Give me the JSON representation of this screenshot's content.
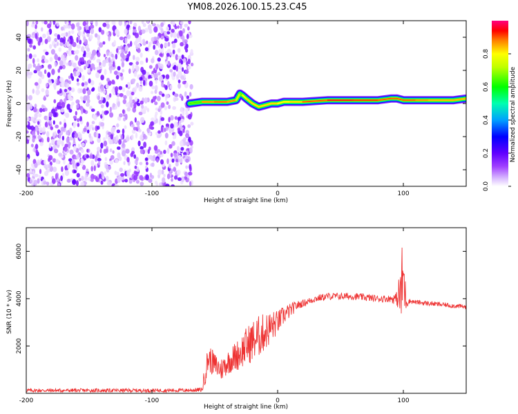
{
  "figure": {
    "title": "YM08.2026.100.15.23.C45"
  },
  "chart_data": [
    {
      "type": "heatmap",
      "panel": "top",
      "xlabel": "Height of straight line (km)",
      "ylabel": "Frequency (Hz)",
      "xlim": [
        -200,
        150
      ],
      "ylim": [
        -50,
        50
      ],
      "xticks": [
        -200,
        -100,
        0,
        100
      ],
      "yticks": [
        -40,
        -20,
        0,
        20,
        40
      ],
      "colorbar": {
        "label": "Normalized spectral amplitude",
        "range": [
          0,
          1
        ],
        "ticks": [
          0.0,
          0.2,
          0.4,
          0.6,
          0.8
        ],
        "tick_labels": [
          "0.0",
          "0.2",
          "0.4",
          "0.6",
          "0.8"
        ],
        "colormap": "rainbow (violet-blue-cyan-green-yellow-red-magenta)"
      },
      "noise_region": {
        "x": [
          -200,
          -68
        ],
        "y": [
          -50,
          50
        ],
        "amplitude": [
          0.02,
          0.2
        ]
      },
      "ridge": {
        "x": [
          -70,
          -60,
          -50,
          -40,
          -33,
          -30,
          -28,
          -25,
          -20,
          -15,
          -10,
          -5,
          0,
          5,
          10,
          20,
          40,
          60,
          80,
          90,
          95,
          100,
          110,
          120,
          140,
          150
        ],
        "y": [
          0,
          1,
          1,
          1,
          2,
          6,
          5,
          3,
          0,
          -2,
          -1,
          0,
          0,
          1,
          1,
          1,
          2,
          2,
          2,
          3,
          3,
          2,
          2,
          2,
          2,
          3
        ],
        "peak_amplitude": [
          0.4,
          0.85,
          0.9,
          0.9,
          0.85,
          0.6,
          0.7,
          0.85,
          0.8,
          0.85,
          0.8,
          0.85,
          0.8,
          0.8,
          0.8,
          0.85,
          0.95,
          0.95,
          0.9,
          0.9,
          0.9,
          0.9,
          0.9,
          0.85,
          0.85,
          0.85
        ]
      }
    },
    {
      "type": "line",
      "panel": "bottom",
      "xlabel": "Height of straight line (km)",
      "ylabel": "SNR (10 * v/v)",
      "xlim": [
        -200,
        150
      ],
      "ylim": [
        0,
        7000
      ],
      "xticks": [
        -200,
        -100,
        0,
        100
      ],
      "yticks": [
        2000,
        4000,
        6000
      ],
      "color": "#ee3333",
      "series": [
        {
          "x": [
            -200,
            -150,
            -100,
            -70,
            -60,
            -58,
            -55,
            -50,
            -45,
            -40,
            -35,
            -30,
            -25,
            -20,
            -15,
            -10,
            -5,
            0,
            5,
            10,
            15,
            20,
            25,
            30,
            35,
            40,
            50,
            60,
            70,
            80,
            90,
            95,
            98,
            100,
            102,
            105,
            110,
            120,
            130,
            140,
            150
          ],
          "y": [
            120,
            120,
            120,
            130,
            150,
            800,
            1500,
            1200,
            1000,
            1300,
            1500,
            1700,
            2000,
            2200,
            2400,
            2600,
            2800,
            3000,
            3300,
            3500,
            3700,
            3800,
            3900,
            4000,
            4050,
            4100,
            4100,
            4100,
            4050,
            4000,
            4000,
            4000,
            4200,
            5000,
            3900,
            3900,
            3850,
            3800,
            3750,
            3700,
            3650
          ],
          "noise_amplitude": [
            80,
            80,
            80,
            80,
            100,
            500,
            600,
            500,
            500,
            500,
            600,
            700,
            800,
            900,
            900,
            800,
            700,
            500,
            400,
            300,
            200,
            150,
            150,
            150,
            150,
            150,
            150,
            150,
            150,
            150,
            150,
            300,
            1500,
            2000,
            400,
            100,
            100,
            100,
            100,
            100,
            100
          ]
        }
      ]
    }
  ]
}
